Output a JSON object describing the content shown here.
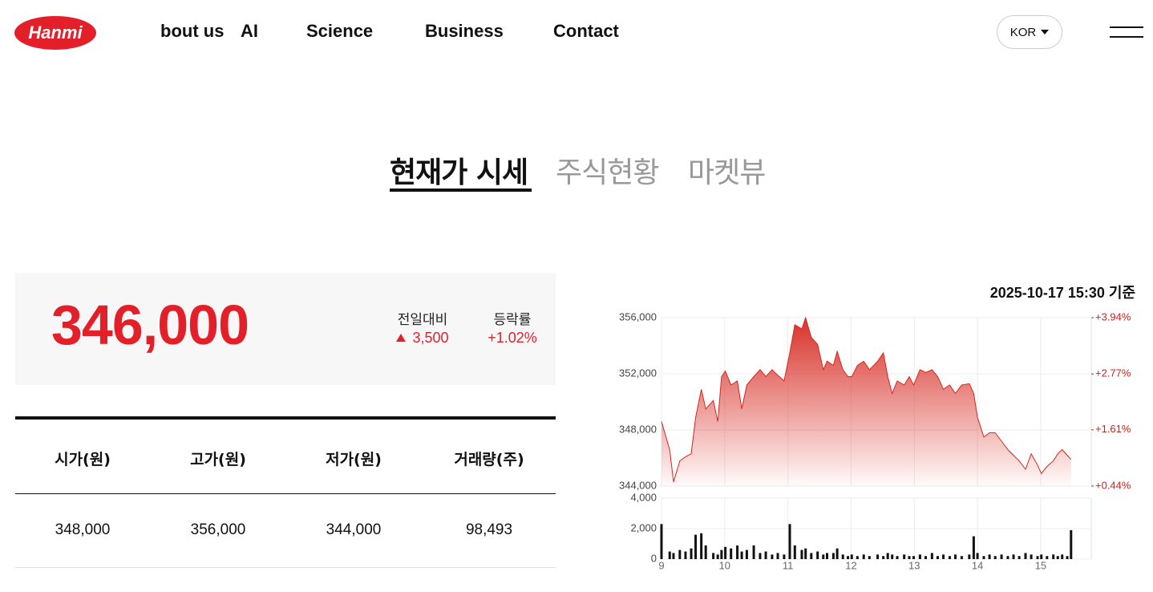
{
  "nav": {
    "logo": "Hanmi",
    "links": [
      "bout us",
      "AI",
      "Science",
      "Business",
      "Contact"
    ],
    "language": "KOR"
  },
  "tabs": [
    "현재가 시세",
    "주식현황",
    "마켓뷰"
  ],
  "quote": {
    "price": "346,000",
    "change_label": "전일대비",
    "change": "3,500",
    "rate_label": "등락률",
    "rate": "+1.02%"
  },
  "table": {
    "headers": [
      "시가(원)",
      "고가(원)",
      "저가(원)",
      "거래량(주)"
    ],
    "rows": [
      [
        "348,000",
        "356,000",
        "344,000",
        "98,493"
      ]
    ]
  },
  "timestamp": "2025-10-17 15:30 기준",
  "chart_data": [
    {
      "type": "area",
      "color": "#d7261e",
      "x": [
        9.0,
        9.13,
        9.19,
        9.29,
        9.38,
        9.47,
        9.54,
        9.63,
        9.7,
        9.82,
        9.89,
        9.95,
        10.01,
        10.1,
        10.2,
        10.27,
        10.35,
        10.46,
        10.56,
        10.65,
        10.75,
        10.84,
        10.94,
        11.03,
        11.11,
        11.22,
        11.28,
        11.37,
        11.47,
        11.56,
        11.62,
        11.72,
        11.78,
        11.87,
        11.95,
        12.01,
        12.1,
        12.2,
        12.29,
        12.42,
        12.51,
        12.58,
        12.65,
        12.73,
        12.84,
        12.92,
        12.99,
        13.09,
        13.18,
        13.28,
        13.37,
        13.46,
        13.56,
        13.65,
        13.75,
        13.87,
        13.94,
        14.0,
        14.1,
        14.19,
        14.28,
        14.38,
        14.48,
        14.57,
        14.66,
        14.76,
        14.85,
        14.95,
        15.01,
        15.1,
        15.2,
        15.27,
        15.34,
        15.42,
        15.48
      ],
      "values": [
        348600,
        346600,
        344300,
        345800,
        346100,
        346300,
        348900,
        350900,
        349500,
        350100,
        348600,
        351800,
        352200,
        351200,
        351500,
        349500,
        351200,
        351800,
        352300,
        351800,
        352300,
        351900,
        351500,
        353500,
        355500,
        355200,
        356000,
        354600,
        354100,
        352300,
        352900,
        352600,
        353600,
        352300,
        351800,
        351800,
        352600,
        352900,
        352300,
        352900,
        353500,
        351800,
        350600,
        351500,
        351200,
        351800,
        351200,
        352300,
        352100,
        352300,
        351800,
        350900,
        351200,
        350600,
        351200,
        351300,
        350600,
        348900,
        347500,
        347800,
        347800,
        347200,
        346600,
        346200,
        345800,
        345200,
        346300,
        345500,
        344900,
        345400,
        345800,
        346300,
        346600,
        346200,
        345900
      ],
      "xlim": [
        9,
        15.8
      ],
      "ylim": [
        344000,
        356000
      ],
      "yticks": [
        {
          "value": 344000,
          "label": "344,000"
        },
        {
          "value": 348000,
          "label": "348,000"
        },
        {
          "value": 352000,
          "label": "352,000"
        },
        {
          "value": 356000,
          "label": "356,000"
        }
      ],
      "y2lim": [
        0.44,
        3.94
      ],
      "y2ticks": [
        {
          "value": 0.44,
          "label": "+0.44%"
        },
        {
          "value": 1.61,
          "label": "+1.61%"
        },
        {
          "value": 2.77,
          "label": "+2.77%"
        },
        {
          "value": 3.94,
          "label": "+3.94%"
        }
      ],
      "y2color": "#c8241c",
      "grid": true
    },
    {
      "type": "bar",
      "color": "#111111",
      "x": [
        9.0,
        9.13,
        9.19,
        9.29,
        9.38,
        9.47,
        9.54,
        9.63,
        9.7,
        9.82,
        9.89,
        9.95,
        10.01,
        10.1,
        10.2,
        10.27,
        10.35,
        10.46,
        10.56,
        10.65,
        10.75,
        10.84,
        10.94,
        11.03,
        11.11,
        11.22,
        11.28,
        11.37,
        11.47,
        11.56,
        11.62,
        11.72,
        11.78,
        11.87,
        11.95,
        12.01,
        12.1,
        12.2,
        12.29,
        12.42,
        12.51,
        12.58,
        12.65,
        12.73,
        12.84,
        12.92,
        12.99,
        13.09,
        13.18,
        13.28,
        13.37,
        13.46,
        13.56,
        13.65,
        13.75,
        13.87,
        13.94,
        14.0,
        14.1,
        14.19,
        14.28,
        14.38,
        14.48,
        14.57,
        14.66,
        14.76,
        14.85,
        14.95,
        15.01,
        15.1,
        15.2,
        15.27,
        15.34,
        15.42,
        15.48
      ],
      "values": [
        2300,
        500,
        400,
        600,
        500,
        700,
        1600,
        1700,
        900,
        400,
        300,
        600,
        800,
        700,
        900,
        500,
        600,
        900,
        400,
        500,
        300,
        400,
        300,
        2300,
        900,
        600,
        700,
        400,
        500,
        300,
        400,
        400,
        700,
        300,
        200,
        300,
        200,
        300,
        200,
        300,
        200,
        400,
        300,
        200,
        300,
        200,
        200,
        300,
        200,
        400,
        200,
        300,
        200,
        300,
        200,
        300,
        1500,
        400,
        200,
        300,
        200,
        300,
        200,
        300,
        200,
        400,
        300,
        200,
        300,
        200,
        300,
        200,
        300,
        200,
        1900
      ],
      "xlim": [
        9,
        15.8
      ],
      "ylim": [
        0,
        4000
      ],
      "yticks": [
        0,
        {
          "value": 2000,
          "label": "2,000"
        },
        {
          "value": 4000,
          "label": "4,000"
        }
      ],
      "xticks": [
        9,
        10,
        11,
        12,
        13,
        14,
        15
      ],
      "grid": true
    }
  ]
}
